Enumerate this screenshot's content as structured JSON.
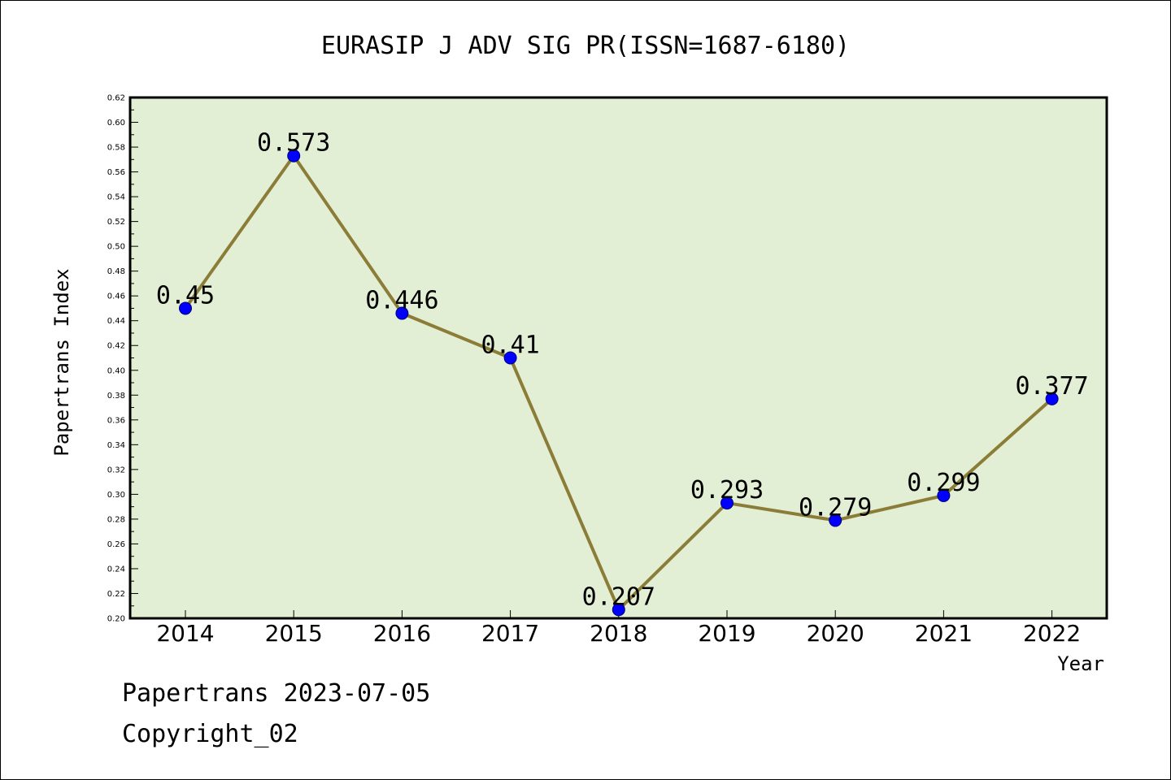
{
  "chart_data": {
    "type": "line",
    "title": "EURASIP J ADV SIG PR(ISSN=1687-6180)",
    "xlabel": "Year",
    "ylabel": "Papertrans Index",
    "categories": [
      "2014",
      "2015",
      "2016",
      "2017",
      "2018",
      "2019",
      "2020",
      "2021",
      "2022"
    ],
    "values": [
      0.45,
      0.573,
      0.446,
      0.41,
      0.207,
      0.293,
      0.279,
      0.299,
      0.377
    ],
    "value_labels": [
      "0.45",
      "0.573",
      "0.446",
      "0.41",
      "0.207",
      "0.293",
      "0.279",
      "0.299",
      "0.377"
    ],
    "ylim": [
      0.2,
      0.62
    ],
    "yticks": [
      "0.20",
      "0.22",
      "0.24",
      "0.26",
      "0.28",
      "0.30",
      "0.32",
      "0.34",
      "0.36",
      "0.38",
      "0.40",
      "0.42",
      "0.44",
      "0.46",
      "0.48",
      "0.50",
      "0.52",
      "0.54",
      "0.56",
      "0.58",
      "0.60",
      "0.62"
    ],
    "grid": false,
    "colors": {
      "plot_background": "#e2efd4",
      "line": "#8b7d38",
      "marker": "#0000ff"
    }
  },
  "footer": {
    "date_line": "Papertrans 2023-07-05",
    "copyright": "Copyright_02"
  }
}
